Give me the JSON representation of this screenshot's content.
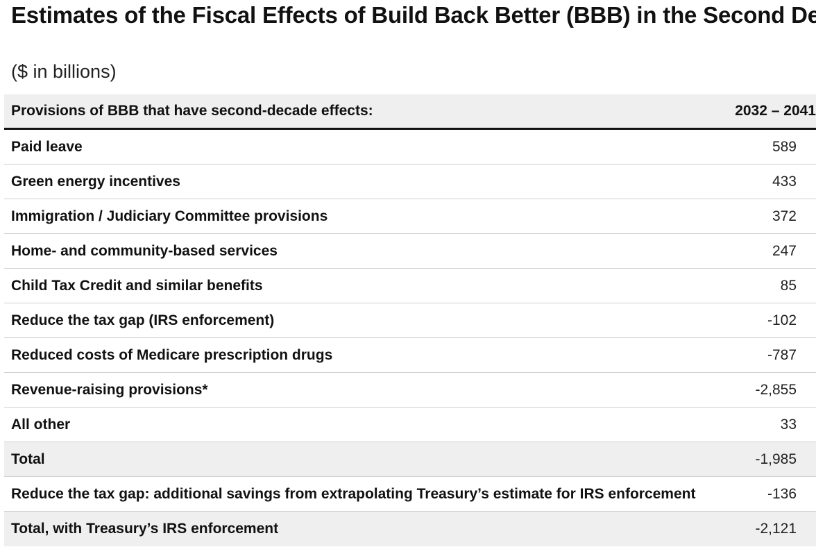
{
  "title": "Estimates of the Fiscal Effects of Build Back Better (BBB) in the Second Decade",
  "subtitle": "($ in billions)",
  "chart_data": {
    "type": "table",
    "columns": [
      "Provisions of BBB that have second-decade effects:",
      "2032 – 2041"
    ],
    "rows": [
      {
        "label": "Paid leave",
        "value": "589"
      },
      {
        "label": "Green energy incentives",
        "value": "433"
      },
      {
        "label": "Immigration / Judiciary Committee provisions",
        "value": "372"
      },
      {
        "label": "Home- and community-based services",
        "value": "247"
      },
      {
        "label": "Child Tax Credit and similar benefits",
        "value": "85"
      },
      {
        "label": "Reduce the tax gap (IRS enforcement)",
        "value": "-102"
      },
      {
        "label": "Reduced costs of Medicare prescription drugs",
        "value": "-787"
      },
      {
        "label": "Revenue-raising provisions*",
        "value": "-2,855"
      },
      {
        "label": "All other",
        "value": "33"
      },
      {
        "label": "Total",
        "value": "-1,985"
      },
      {
        "label": "Reduce the tax gap: additional savings from extrapolating Treasury’s estimate for IRS enforcement",
        "value": "-136"
      },
      {
        "label": "Total, with Treasury’s IRS enforcement",
        "value": "-2,121"
      }
    ]
  }
}
